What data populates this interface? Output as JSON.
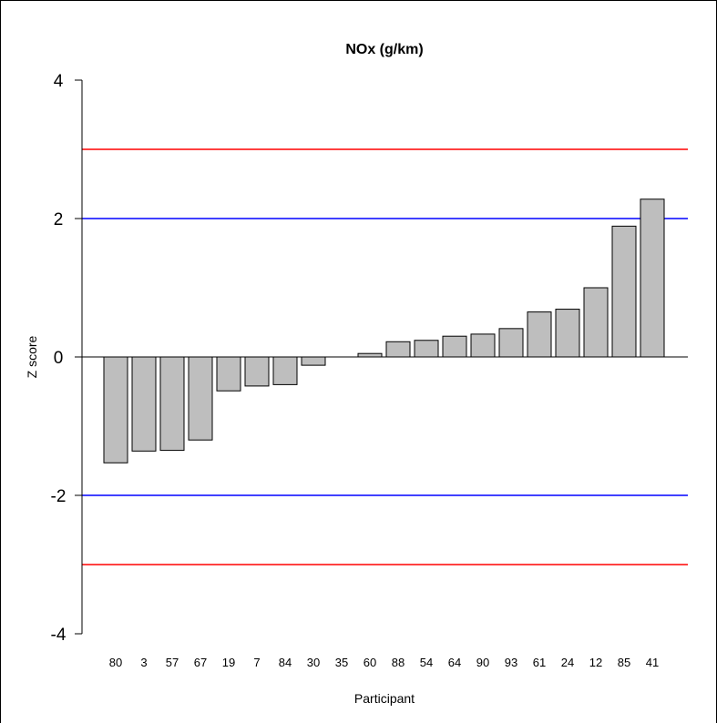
{
  "chart_data": {
    "type": "bar",
    "title": "NOx (g/km)",
    "xlabel": "Participant",
    "ylabel": "Z score",
    "ylim": [
      -4,
      4
    ],
    "yticks": [
      -4,
      -2,
      0,
      2,
      4
    ],
    "categories": [
      "80",
      "3",
      "57",
      "67",
      "19",
      "7",
      "84",
      "30",
      "35",
      "60",
      "88",
      "54",
      "64",
      "90",
      "93",
      "61",
      "24",
      "12",
      "85",
      "41"
    ],
    "values": [
      -1.53,
      -1.36,
      -1.35,
      -1.2,
      -0.49,
      -0.42,
      -0.4,
      -0.12,
      0.0,
      0.05,
      0.22,
      0.24,
      0.3,
      0.33,
      0.41,
      0.65,
      0.69,
      1.0,
      1.89,
      2.28
    ],
    "reference_lines": [
      {
        "value": 3,
        "color": "#ff0000"
      },
      {
        "value": 2,
        "color": "#0000ff"
      },
      {
        "value": -2,
        "color": "#0000ff"
      },
      {
        "value": -3,
        "color": "#ff0000"
      }
    ],
    "bar_color": "#bebebe",
    "grid": false,
    "legend": "none"
  }
}
